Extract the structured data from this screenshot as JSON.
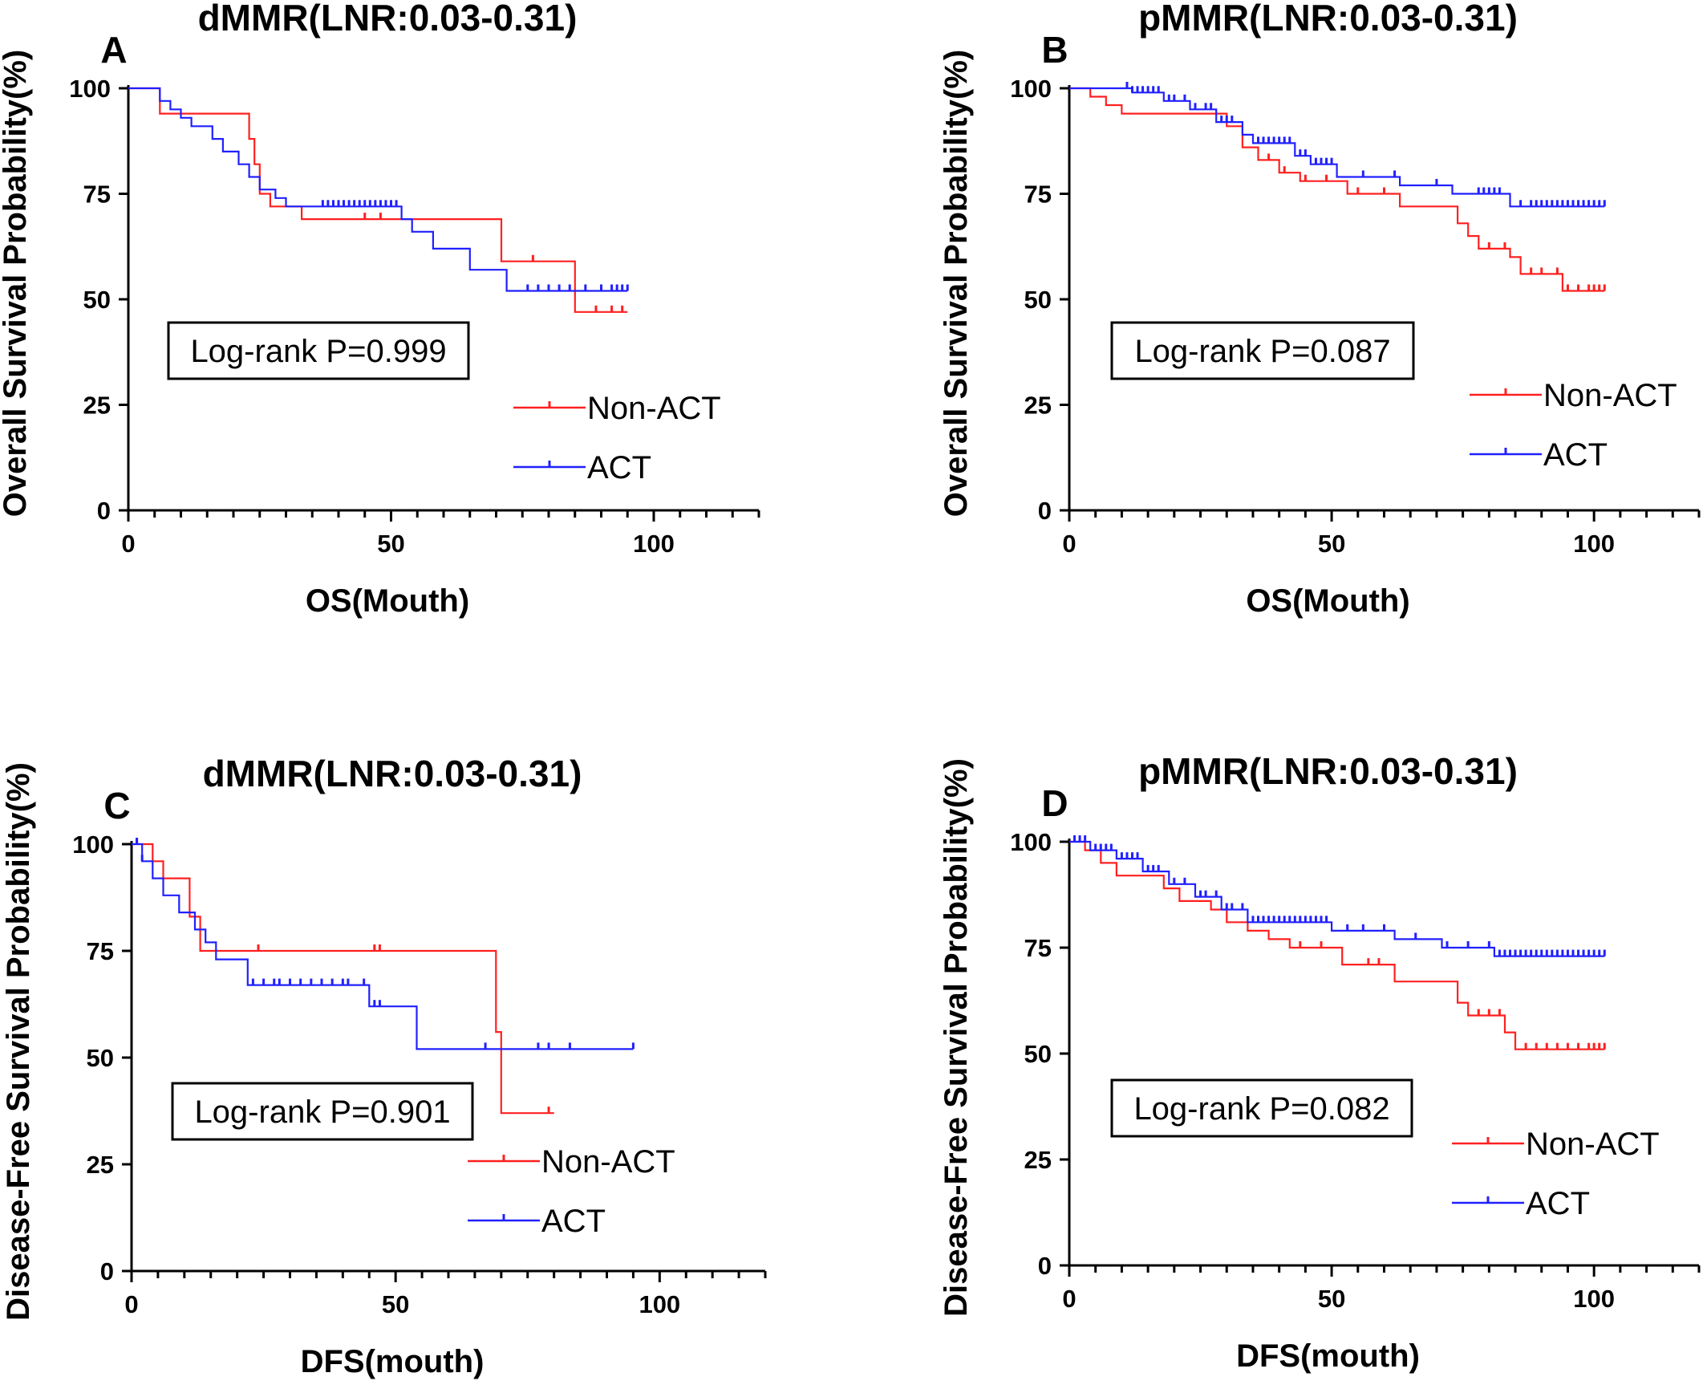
{
  "colors": {
    "non_act": "#ff2020",
    "act": "#2020ff",
    "axis": "#000000"
  },
  "chart_data": [
    {
      "type": "line",
      "panel_letter": "A",
      "title": "dMMR(LNR:0.03-0.31)",
      "xlabel": "OS(Mouth)",
      "ylabel": "Overall Survival Probability(%)",
      "xlim": [
        0,
        120
      ],
      "ylim": [
        0,
        100
      ],
      "xticks": [
        0,
        50,
        100
      ],
      "yticks": [
        0,
        25,
        50,
        75,
        100
      ],
      "annotation": "Log-rank P=0.999",
      "legend_position": "right-middle",
      "series": [
        {
          "name": "Non-ACT",
          "x": [
            0,
            6,
            6,
            23,
            23,
            24,
            24,
            25,
            25,
            27,
            27,
            33,
            33,
            71,
            71,
            85,
            85,
            95
          ],
          "y": [
            100,
            100,
            94,
            94,
            88,
            88,
            82,
            82,
            75,
            75,
            72,
            72,
            69,
            69,
            59,
            59,
            47,
            47
          ],
          "censor_x": [
            45,
            48,
            77,
            89,
            92,
            94
          ]
        },
        {
          "name": "ACT",
          "x": [
            0,
            6,
            6,
            8,
            8,
            10,
            10,
            12,
            12,
            16,
            16,
            18,
            18,
            21,
            21,
            23,
            23,
            25,
            25,
            28,
            28,
            30,
            30,
            52,
            52,
            54,
            54,
            58,
            58,
            65,
            65,
            72,
            72,
            95
          ],
          "y": [
            100,
            100,
            97,
            97,
            95,
            95,
            93,
            93,
            91,
            91,
            88,
            88,
            85,
            85,
            82,
            82,
            79,
            79,
            76,
            76,
            74,
            74,
            72,
            72,
            69,
            69,
            66,
            66,
            62,
            62,
            57,
            57,
            52,
            52
          ],
          "censor_x": [
            37,
            38,
            39,
            40,
            41,
            42,
            43,
            44,
            45,
            46,
            47,
            48,
            49,
            50,
            51,
            76,
            78,
            80,
            82,
            84,
            87,
            90,
            92,
            93,
            94,
            95
          ]
        }
      ]
    },
    {
      "type": "line",
      "panel_letter": "B",
      "title": "pMMR(LNR:0.03-0.31)",
      "xlabel": "OS(Mouth)",
      "ylabel": "Overall Survival Probability(%)",
      "xlim": [
        0,
        120
      ],
      "ylim": [
        0,
        100
      ],
      "xticks": [
        0,
        50,
        100
      ],
      "yticks": [
        0,
        25,
        50,
        75,
        100
      ],
      "annotation": "Log-rank P=0.087",
      "legend_position": "right-middle",
      "series": [
        {
          "name": "Non-ACT",
          "x": [
            0,
            4,
            4,
            7,
            7,
            10,
            10,
            30,
            30,
            33,
            33,
            36,
            36,
            40,
            40,
            44,
            44,
            53,
            53,
            63,
            63,
            74,
            74,
            76,
            76,
            78,
            78,
            84,
            84,
            86,
            86,
            94,
            94,
            102
          ],
          "y": [
            100,
            100,
            98,
            98,
            96,
            96,
            94,
            94,
            91,
            91,
            86,
            86,
            83,
            83,
            80,
            80,
            78,
            78,
            75,
            75,
            72,
            72,
            68,
            68,
            65,
            65,
            62,
            62,
            60,
            60,
            56,
            56,
            52,
            52
          ],
          "censor_x": [
            38,
            41,
            45,
            49,
            55,
            60,
            80,
            83,
            88,
            90,
            93,
            95,
            97,
            99,
            100,
            101,
            102
          ]
        },
        {
          "name": "ACT",
          "x": [
            0,
            12,
            12,
            18,
            18,
            23,
            23,
            28,
            28,
            33,
            33,
            35,
            35,
            43,
            43,
            46,
            46,
            51,
            51,
            63,
            63,
            73,
            73,
            84,
            84,
            102
          ],
          "y": [
            100,
            100,
            99,
            99,
            97,
            97,
            95,
            95,
            92,
            92,
            89,
            89,
            87,
            87,
            84,
            84,
            82,
            82,
            79,
            79,
            77,
            77,
            75,
            75,
            72,
            72
          ],
          "censor_x": [
            11,
            12,
            13,
            14,
            15,
            16,
            17,
            19,
            20,
            22,
            24,
            26,
            27,
            29,
            30,
            31,
            36,
            37,
            38,
            39,
            40,
            41,
            42,
            44,
            45,
            47,
            48,
            49,
            50,
            56,
            62,
            70,
            78,
            79,
            80,
            81,
            82,
            86,
            88,
            89,
            90,
            91,
            92,
            93,
            94,
            95,
            96,
            97,
            98,
            99,
            100,
            101,
            102
          ]
        }
      ]
    },
    {
      "type": "line",
      "panel_letter": "C",
      "title": "dMMR(LNR:0.03-0.31)",
      "xlabel": "DFS(mouth)",
      "ylabel": "Disease-Free Survival Probability(%)",
      "xlim": [
        0,
        120
      ],
      "ylim": [
        0,
        100
      ],
      "xticks": [
        0,
        50,
        100
      ],
      "yticks": [
        0,
        25,
        50,
        75,
        100
      ],
      "annotation": "Log-rank P=0.901",
      "legend_position": "right-middle",
      "series": [
        {
          "name": "Non-ACT",
          "x": [
            0,
            4,
            4,
            6,
            6,
            11,
            11,
            13,
            13,
            69,
            69,
            70,
            70,
            80
          ],
          "y": [
            100,
            100,
            96,
            96,
            92,
            92,
            83,
            83,
            75,
            75,
            56,
            56,
            37,
            37
          ],
          "censor_x": [
            1,
            24,
            46,
            47,
            79
          ]
        },
        {
          "name": "ACT",
          "x": [
            0,
            2,
            2,
            4,
            4,
            6,
            6,
            9,
            9,
            12,
            12,
            14,
            14,
            16,
            16,
            22,
            22,
            45,
            45,
            54,
            54,
            95
          ],
          "y": [
            100,
            100,
            96,
            96,
            92,
            92,
            88,
            88,
            84,
            84,
            80,
            80,
            77,
            77,
            73,
            73,
            67,
            67,
            62,
            62,
            52,
            52
          ],
          "censor_x": [
            1,
            2,
            23,
            25,
            27,
            28,
            30,
            32,
            34,
            36,
            38,
            40,
            41,
            44,
            46,
            47,
            67,
            77,
            79,
            83,
            95
          ]
        }
      ]
    },
    {
      "type": "line",
      "panel_letter": "D",
      "title": "pMMR(LNR:0.03-0.31)",
      "xlabel": "DFS(mouth)",
      "ylabel": "Disease-Free Survival Probability(%)",
      "xlim": [
        0,
        120
      ],
      "ylim": [
        0,
        100
      ],
      "xticks": [
        0,
        50,
        100
      ],
      "yticks": [
        0,
        25,
        50,
        75,
        100
      ],
      "annotation": "Log-rank P=0.082",
      "legend_position": "right-middle",
      "series": [
        {
          "name": "Non-ACT",
          "x": [
            0,
            3,
            3,
            6,
            6,
            9,
            9,
            18,
            18,
            21,
            21,
            27,
            27,
            30,
            30,
            34,
            34,
            38,
            38,
            42,
            42,
            52,
            52,
            62,
            62,
            74,
            74,
            76,
            76,
            83,
            83,
            85,
            85,
            102
          ],
          "y": [
            100,
            100,
            98,
            98,
            95,
            95,
            92,
            92,
            89,
            89,
            86,
            86,
            84,
            84,
            81,
            81,
            79,
            79,
            77,
            77,
            75,
            75,
            71,
            71,
            67,
            67,
            62,
            62,
            59,
            59,
            55,
            55,
            51,
            51
          ],
          "censor_x": [
            44,
            48,
            57,
            59,
            78,
            80,
            82,
            87,
            89,
            91,
            93,
            95,
            97,
            99,
            100,
            101,
            102
          ]
        },
        {
          "name": "ACT",
          "x": [
            0,
            4,
            4,
            9,
            9,
            14,
            14,
            19,
            19,
            24,
            24,
            29,
            29,
            34,
            34,
            50,
            50,
            62,
            62,
            71,
            71,
            81,
            81,
            102
          ],
          "y": [
            100,
            100,
            98,
            98,
            96,
            96,
            93,
            93,
            90,
            90,
            87,
            87,
            84,
            84,
            81,
            81,
            79,
            79,
            77,
            77,
            75,
            75,
            73,
            73
          ],
          "censor_x": [
            1,
            2,
            3,
            5,
            6,
            7,
            8,
            10,
            11,
            12,
            13,
            15,
            16,
            17,
            20,
            22,
            25,
            26,
            28,
            30,
            31,
            33,
            35,
            36,
            37,
            38,
            39,
            40,
            41,
            42,
            43,
            44,
            45,
            46,
            47,
            48,
            49,
            53,
            56,
            60,
            66,
            72,
            76,
            80,
            82,
            83,
            84,
            85,
            86,
            87,
            88,
            89,
            90,
            91,
            92,
            93,
            94,
            95,
            96,
            97,
            98,
            99,
            100,
            101,
            102
          ]
        }
      ]
    }
  ]
}
